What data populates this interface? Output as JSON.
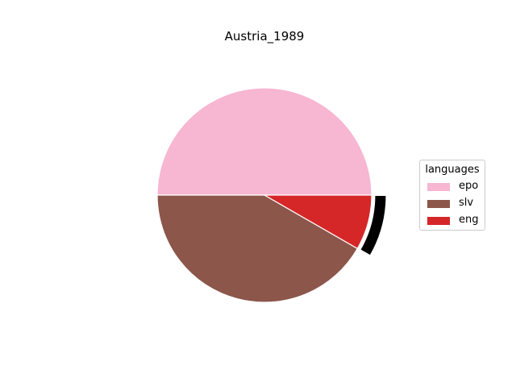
{
  "chart_data": {
    "type": "pie",
    "title": "Austria_1989",
    "legend": {
      "title": "languages",
      "placement": "center-right"
    },
    "slices": [
      {
        "label": "epo",
        "value": 50.0,
        "color": "#f7b6d2",
        "exploded": false
      },
      {
        "label": "slv",
        "value": 41.7,
        "color": "#8c564b",
        "exploded": false
      },
      {
        "label": "eng",
        "value": 8.3,
        "color": "#d62728",
        "exploded": true
      }
    ]
  }
}
